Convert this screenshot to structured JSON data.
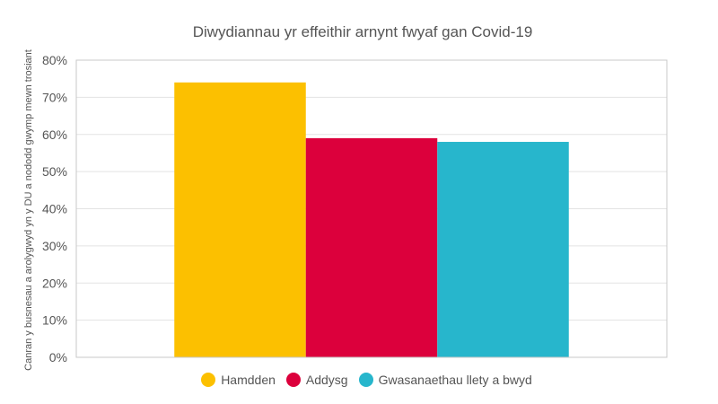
{
  "chart_data": {
    "type": "bar",
    "title": "Diwydiannau yr effeithir arnynt fwyaf gan Covid-19",
    "xlabel": "",
    "ylabel": "Canran y busnesau a arolygwyd yn y DU a nododd gwymp mewn trosiant",
    "ylim": [
      0,
      80
    ],
    "yticks": [
      "0%",
      "10%",
      "20%",
      "30%",
      "40%",
      "50%",
      "60%",
      "70%",
      "80%"
    ],
    "grid": true,
    "legend_position": "bottom",
    "series": [
      {
        "name": "Hamdden",
        "value": 74,
        "color": "#FCC000"
      },
      {
        "name": "Addysg",
        "value": 59,
        "color": "#DC003C"
      },
      {
        "name": "Gwasanaethau llety a bwyd",
        "value": 58,
        "color": "#27B6CC"
      }
    ]
  }
}
